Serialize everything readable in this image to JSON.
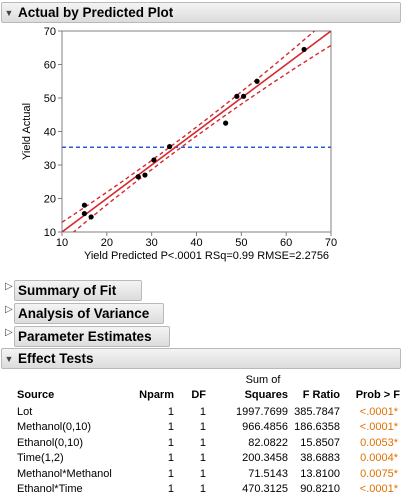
{
  "sections": {
    "plot_title": "Actual by Predicted Plot",
    "summary_of_fit": "Summary of Fit",
    "analysis_of_variance": "Analysis of Variance",
    "parameter_estimates": "Parameter Estimates",
    "effect_tests": "Effect Tests"
  },
  "chart_data": {
    "type": "scatter",
    "title": "",
    "xlabel": "Yield Predicted P<.0001 RSq=0.99 RMSE=2.2756",
    "ylabel": "Yield Actual",
    "xlim": [
      10,
      70
    ],
    "ylim": [
      10,
      70
    ],
    "x_ticks": [
      "10",
      "20",
      "30",
      "40",
      "50",
      "60",
      "70"
    ],
    "y_ticks": [
      "10",
      "20",
      "30",
      "40",
      "50",
      "60",
      "70"
    ],
    "points": [
      {
        "x": 15.0,
        "y": 18.0
      },
      {
        "x": 15.0,
        "y": 15.5
      },
      {
        "x": 16.5,
        "y": 14.5
      },
      {
        "x": 27.0,
        "y": 26.5
      },
      {
        "x": 28.5,
        "y": 27.0
      },
      {
        "x": 30.5,
        "y": 31.5
      },
      {
        "x": 34.0,
        "y": 35.5
      },
      {
        "x": 46.5,
        "y": 42.5
      },
      {
        "x": 49.0,
        "y": 50.5
      },
      {
        "x": 50.5,
        "y": 50.5
      },
      {
        "x": 53.5,
        "y": 55.0
      },
      {
        "x": 64.0,
        "y": 64.5
      }
    ],
    "mean_line_y": 35.3,
    "colors": {
      "fit": "#d6282d",
      "mean": "#2b57d9",
      "points": "#000000"
    }
  },
  "effect_tests": {
    "headers": {
      "source": "Source",
      "nparm": "Nparm",
      "df": "DF",
      "ss_line1": "Sum of",
      "ss_line2": "Squares",
      "fratio": "F Ratio",
      "prob": "Prob > F"
    },
    "rows": [
      {
        "source": "Lot",
        "nparm": "1",
        "df": "1",
        "ss": "1997.7699",
        "fratio": "385.7847",
        "prob": "<.0001*"
      },
      {
        "source": "Methanol(0,10)",
        "nparm": "1",
        "df": "1",
        "ss": "966.4856",
        "fratio": "186.6358",
        "prob": "<.0001*"
      },
      {
        "source": "Ethanol(0,10)",
        "nparm": "1",
        "df": "1",
        "ss": "82.0822",
        "fratio": "15.8507",
        "prob": "0.0053*"
      },
      {
        "source": "Time(1,2)",
        "nparm": "1",
        "df": "1",
        "ss": "200.3458",
        "fratio": "38.6883",
        "prob": "0.0004*"
      },
      {
        "source": "Methanol*Methanol",
        "nparm": "1",
        "df": "1",
        "ss": "71.5143",
        "fratio": "13.8100",
        "prob": "0.0075*"
      },
      {
        "source": "Ethanol*Time",
        "nparm": "1",
        "df": "1",
        "ss": "470.3125",
        "fratio": "90.8210",
        "prob": "<.0001*"
      }
    ]
  }
}
